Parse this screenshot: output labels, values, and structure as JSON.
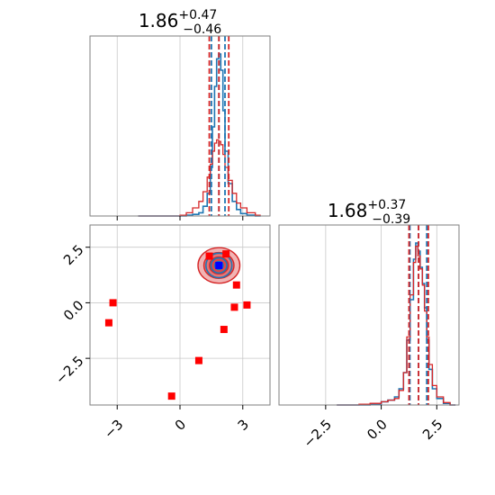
{
  "chart_data": [
    {
      "type": "histogram",
      "panel": "marginal-param-1",
      "title_value": "1.86",
      "title_plus": "+0.47",
      "title_minus": "−0.46",
      "xlim": [
        -4.3,
        4.3
      ],
      "grid": true,
      "series": [
        {
          "color": "#1f77b4",
          "x": [
            -2.0,
            -1.5,
            -1.0,
            -0.5,
            0.0,
            0.3,
            0.6,
            0.9,
            1.1,
            1.3,
            1.45,
            1.55,
            1.65,
            1.75,
            1.85,
            1.95,
            2.05,
            2.15,
            2.3,
            2.5,
            2.7,
            2.9,
            3.2,
            3.6
          ],
          "values": [
            0,
            0,
            0,
            0,
            0,
            0.005,
            0.01,
            0.02,
            0.06,
            0.14,
            0.3,
            0.55,
            0.8,
            0.97,
            1.0,
            0.9,
            0.65,
            0.4,
            0.2,
            0.09,
            0.04,
            0.015,
            0.005,
            0
          ]
        },
        {
          "color": "#d62728",
          "x": [
            -2.0,
            -1.5,
            -1.0,
            -0.5,
            0.0,
            0.3,
            0.6,
            0.9,
            1.1,
            1.3,
            1.45,
            1.55,
            1.65,
            1.75,
            1.85,
            1.95,
            2.05,
            2.15,
            2.3,
            2.5,
            2.7,
            2.9,
            3.2,
            3.6
          ],
          "values": [
            0,
            0,
            0,
            0,
            0.005,
            0.02,
            0.05,
            0.09,
            0.15,
            0.24,
            0.32,
            0.4,
            0.45,
            0.47,
            0.46,
            0.44,
            0.38,
            0.3,
            0.22,
            0.14,
            0.08,
            0.05,
            0.02,
            0.005
          ]
        }
      ],
      "quantile_lines": [
        {
          "color": "#1f77b4",
          "x": [
            1.5,
            1.86,
            2.15
          ]
        },
        {
          "color": "#d62728",
          "x": [
            1.4,
            1.86,
            2.33
          ]
        }
      ]
    },
    {
      "type": "scatter",
      "panel": "joint-2d",
      "xlim": [
        -4.3,
        4.3
      ],
      "ylim": [
        -4.6,
        3.5
      ],
      "xticks": [
        "−3",
        "0",
        "3"
      ],
      "xtick_values": [
        -3,
        0,
        3
      ],
      "yticks": [
        "−2.5",
        "0.0",
        "2.5"
      ],
      "ytick_values": [
        -2.5,
        0,
        2.5
      ],
      "grid": true,
      "red_markers": {
        "color": "#ff0000",
        "points": [
          [
            1.4,
            2.1
          ],
          [
            2.2,
            2.2
          ],
          [
            2.7,
            0.8
          ],
          [
            2.6,
            -0.2
          ],
          [
            3.2,
            -0.1
          ],
          [
            -3.2,
            0
          ],
          [
            -3.4,
            -0.9
          ],
          [
            2.1,
            -1.2
          ],
          [
            0.9,
            -2.6
          ],
          [
            -0.4,
            -4.2
          ]
        ]
      },
      "blue_marker": {
        "color": "#0000ff",
        "x": 1.86,
        "y": 1.68
      },
      "contours": {
        "center": [
          1.86,
          1.68
        ],
        "red_radii": [
          [
            1.0,
            0.8
          ],
          [
            0.72,
            0.58
          ],
          [
            0.45,
            0.38
          ]
        ],
        "blue_radii": [
          [
            0.62,
            0.55
          ],
          [
            0.38,
            0.34
          ],
          [
            0.2,
            0.18
          ]
        ]
      }
    },
    {
      "type": "histogram",
      "panel": "marginal-param-2",
      "title_value": "1.68",
      "title_plus": "+0.37",
      "title_minus": "−0.39",
      "xlim": [
        -4.6,
        3.5
      ],
      "xticks": [
        "−2.5",
        "0.0",
        "2.5"
      ],
      "xtick_values": [
        -2.5,
        0,
        2.5
      ],
      "grid": true,
      "series": [
        {
          "color": "#1f77b4",
          "x": [
            -2.0,
            -1.0,
            -0.5,
            0.0,
            0.3,
            0.6,
            0.8,
            1.0,
            1.15,
            1.3,
            1.45,
            1.55,
            1.65,
            1.75,
            1.85,
            1.95,
            2.05,
            2.15,
            2.3,
            2.5,
            2.8,
            3.1
          ],
          "values": [
            0,
            0,
            0.005,
            0.02,
            0.03,
            0.05,
            0.1,
            0.2,
            0.4,
            0.65,
            0.9,
            1.0,
            0.95,
            0.85,
            0.75,
            0.6,
            0.4,
            0.22,
            0.1,
            0.04,
            0.01,
            0
          ]
        },
        {
          "color": "#d62728",
          "x": [
            -2.0,
            -1.0,
            -0.5,
            0.0,
            0.3,
            0.6,
            0.8,
            1.0,
            1.15,
            1.3,
            1.45,
            1.55,
            1.65,
            1.75,
            1.85,
            1.95,
            2.05,
            2.15,
            2.3,
            2.5,
            2.8,
            3.1
          ],
          "values": [
            0,
            0.005,
            0.01,
            0.02,
            0.03,
            0.04,
            0.09,
            0.2,
            0.42,
            0.68,
            0.88,
            0.98,
            0.92,
            0.84,
            0.74,
            0.58,
            0.42,
            0.25,
            0.12,
            0.05,
            0.015,
            0
          ]
        }
      ],
      "quantile_lines": [
        {
          "color": "#1f77b4",
          "x": [
            1.29,
            1.68,
            2.05
          ]
        },
        {
          "color": "#d62728",
          "x": [
            1.25,
            1.68,
            2.12
          ]
        }
      ]
    }
  ]
}
